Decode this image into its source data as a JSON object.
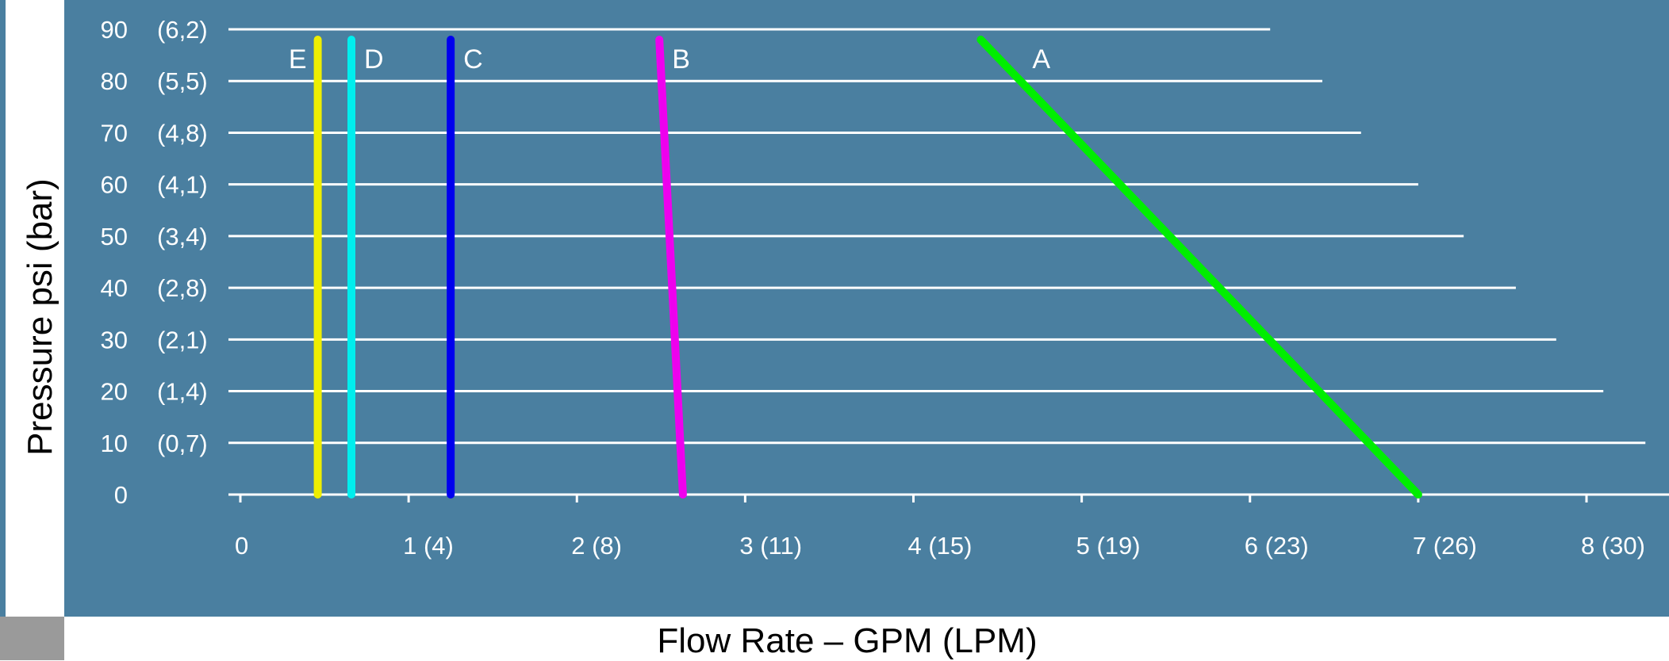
{
  "colors": {
    "panel": "#4a7fa0",
    "side_strip": "#4a7fa0",
    "corner_block": "#9a9a9a",
    "grid": "#ffffff",
    "text_light": "#ffffff",
    "text_dark": "#000000"
  },
  "chart_data": {
    "type": "line",
    "title": "",
    "xlabel": "Flow Rate – GPM (LPM)",
    "ylabel": "Pressure psi (bar)",
    "xlim": [
      0,
      8
    ],
    "ylim": [
      0,
      90
    ],
    "grid": true,
    "x_ticks": [
      {
        "value": 0,
        "label": "0"
      },
      {
        "value": 1,
        "label": "1  (4)"
      },
      {
        "value": 2,
        "label": "2  (8)"
      },
      {
        "value": 3,
        "label": "3  (11)"
      },
      {
        "value": 4,
        "label": "4  (15)"
      },
      {
        "value": 5,
        "label": "5  (19)"
      },
      {
        "value": 6,
        "label": "6  (23)"
      },
      {
        "value": 7,
        "label": "7  (26)"
      },
      {
        "value": 8,
        "label": "8  (30)"
      }
    ],
    "y_ticks": [
      {
        "value": 0,
        "psi": "0",
        "bar": ""
      },
      {
        "value": 10,
        "psi": "10",
        "bar": "(0,7)"
      },
      {
        "value": 20,
        "psi": "20",
        "bar": "(1,4)"
      },
      {
        "value": 30,
        "psi": "30",
        "bar": "(2,1)"
      },
      {
        "value": 40,
        "psi": "40",
        "bar": "(2,8)"
      },
      {
        "value": 50,
        "psi": "50",
        "bar": "(3,4)"
      },
      {
        "value": 60,
        "psi": "60",
        "bar": "(4,1)"
      },
      {
        "value": 70,
        "psi": "70",
        "bar": "(4,8)"
      },
      {
        "value": 80,
        "psi": "80",
        "bar": "(5,5)"
      },
      {
        "value": 90,
        "psi": "90",
        "bar": "(6,2)"
      }
    ],
    "gridline_extent": [
      {
        "y": 10,
        "x_end": 8.35
      },
      {
        "y": 20,
        "x_end": 8.1
      },
      {
        "y": 30,
        "x_end": 7.82
      },
      {
        "y": 40,
        "x_end": 7.58
      },
      {
        "y": 50,
        "x_end": 7.27
      },
      {
        "y": 60,
        "x_end": 7.0
      },
      {
        "y": 70,
        "x_end": 6.66
      },
      {
        "y": 80,
        "x_end": 6.43
      },
      {
        "y": 90,
        "x_end": 6.12
      }
    ],
    "series": [
      {
        "name": "A",
        "color": "#00ee00",
        "points": [
          [
            4.4,
            88
          ],
          [
            7.0,
            0
          ]
        ]
      },
      {
        "name": "B",
        "color": "#ee00ee",
        "points": [
          [
            2.49,
            88
          ],
          [
            2.63,
            0
          ]
        ]
      },
      {
        "name": "C",
        "color": "#0000ee",
        "points": [
          [
            1.25,
            88
          ],
          [
            1.25,
            0
          ]
        ]
      },
      {
        "name": "D",
        "color": "#00eeee",
        "points": [
          [
            0.66,
            88
          ],
          [
            0.66,
            0
          ]
        ]
      },
      {
        "name": "E",
        "color": "#eeee00",
        "points": [
          [
            0.46,
            88
          ],
          [
            0.46,
            0
          ]
        ]
      }
    ]
  }
}
